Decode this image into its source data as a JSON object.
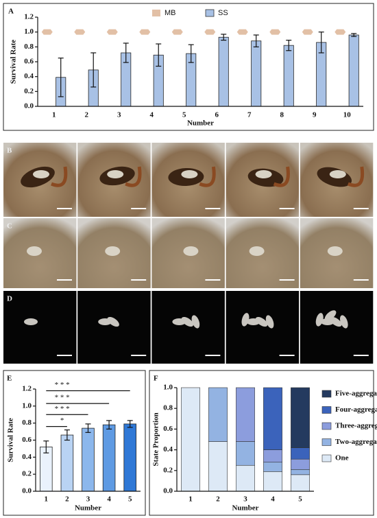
{
  "chart_data": [
    {
      "type": "bar",
      "panel": "A",
      "x_label": "Number",
      "y_label": "Survival Rate",
      "categories": [
        "1",
        "2",
        "3",
        "4",
        "5",
        "6",
        "7",
        "8",
        "9",
        "10"
      ],
      "series": [
        {
          "name": "MB",
          "color": "#e2c0a6",
          "shape": "marker",
          "values": [
            1,
            1,
            1,
            1,
            1,
            1,
            1,
            1,
            1,
            1
          ]
        },
        {
          "name": "SS",
          "color": "#a8c1e5",
          "values": [
            0.39,
            0.49,
            0.72,
            0.69,
            0.71,
            0.93,
            0.88,
            0.82,
            0.86,
            0.96
          ],
          "errors": [
            0.26,
            0.23,
            0.13,
            0.15,
            0.12,
            0.04,
            0.08,
            0.07,
            0.14,
            0.02
          ]
        }
      ],
      "ylim": [
        0,
        1.2
      ],
      "yticks": [
        {
          "value": 0,
          "label": "0.0"
        },
        0.2,
        0.4,
        0.6,
        0.8,
        {
          "value": 1,
          "label": "1.0"
        },
        1.2
      ],
      "legend": "top"
    },
    {
      "type": "bar",
      "panel": "E",
      "x_label": "Number",
      "y_label": "Survival Rate",
      "categories": [
        "1",
        "2",
        "3",
        "4",
        "5"
      ],
      "series": [
        {
          "values": [
            0.52,
            0.66,
            0.74,
            0.78,
            0.79
          ],
          "errors": [
            0.07,
            0.06,
            0.05,
            0.05,
            0.04
          ],
          "colors": [
            "#eaf2fc",
            "#b9d3f3",
            "#8cb7ec",
            "#5e9ae3",
            "#2f78d6"
          ]
        }
      ],
      "ylim": [
        0,
        1.2
      ],
      "yticks": [
        {
          "value": 0,
          "label": "0.0"
        },
        0.2,
        0.4,
        0.6,
        0.8,
        {
          "value": 1,
          "label": "1.0"
        },
        1.2
      ],
      "brackets": [
        {
          "span": [
            "1",
            "5"
          ],
          "y": 1.18,
          "label": "* * *"
        },
        {
          "span": [
            "1",
            "4"
          ],
          "y": 1.03,
          "label": "* * *"
        },
        {
          "span": [
            "1",
            "3"
          ],
          "y": 0.9,
          "label": "* * *"
        },
        {
          "span": [
            "1",
            "2"
          ],
          "y": 0.76,
          "label": "*"
        }
      ]
    },
    {
      "type": "stacked_bar",
      "panel": "F",
      "x_label": "Number",
      "y_label": "State Proportion",
      "categories": [
        "1",
        "2",
        "3",
        "4",
        "5"
      ],
      "series": [
        {
          "name": "One",
          "color": "#dde9f6",
          "values": [
            1,
            0.48,
            0.25,
            0.19,
            0.16
          ]
        },
        {
          "name": "Two-aggregating",
          "color": "#93b3e2",
          "values": [
            0,
            0.52,
            0.23,
            0.09,
            0.05
          ]
        },
        {
          "name": "Three-aggregating",
          "color": "#8c9ddd",
          "values": [
            0,
            0,
            0.52,
            0.12,
            0.1
          ]
        },
        {
          "name": "Four-aggregating",
          "color": "#3b63bb",
          "values": [
            0,
            0,
            0,
            0.6,
            0.11
          ]
        },
        {
          "name": "Five-aggregating",
          "color": "#243a5f",
          "values": [
            0,
            0,
            0,
            0,
            0.58
          ]
        }
      ],
      "ylim": [
        0,
        1
      ],
      "yticks": [
        {
          "value": 0,
          "label": "0.0"
        },
        0.2,
        0.4,
        0.6,
        0.8,
        {
          "value": 1,
          "label": "1.0"
        }
      ],
      "legend": "right"
    }
  ],
  "photo_panels": [
    {
      "label": "B"
    },
    {
      "label": "C"
    },
    {
      "label": "D"
    }
  ]
}
